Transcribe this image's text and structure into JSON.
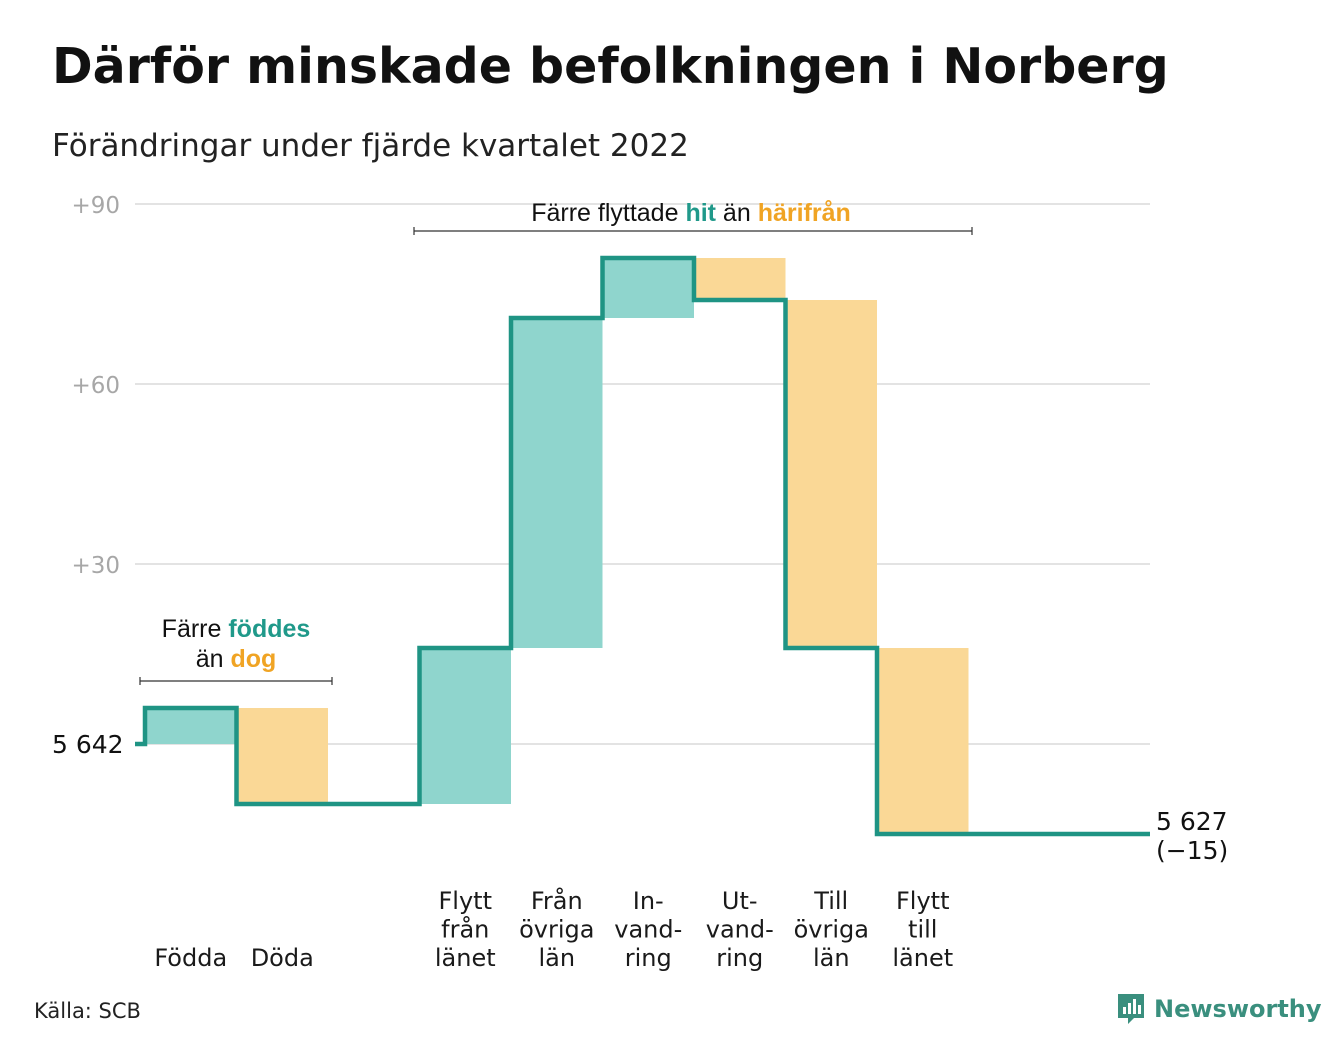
{
  "title": "Därför minskade befolkningen i Norberg",
  "subtitle": "Förändringar under fjärde kvartalet 2022",
  "source": "Källa: SCB",
  "brand": {
    "name": "Newsworthy",
    "icon": "newsworthy-logo-icon"
  },
  "colors": {
    "increase_fill": "#8fd5cd",
    "decrease_fill": "#fad896",
    "step_line": "#1f9484",
    "grid": "#e3e3e3",
    "tick_text": "#a7a7a7",
    "accent_teal": "#20998a",
    "accent_orange": "#f0a424"
  },
  "chart_data": {
    "type": "waterfall",
    "start": {
      "label": "5 642",
      "value": 5642
    },
    "end": {
      "label": "5 627",
      "change_label": "(−15)",
      "value": 5627
    },
    "y_ticks": [
      {
        "label": "+30",
        "value": 30
      },
      {
        "label": "+60",
        "value": 60
      },
      {
        "label": "+90",
        "value": 90
      }
    ],
    "ylim": [
      -20,
      90
    ],
    "grid": true,
    "steps": [
      {
        "label": [
          "Födda"
        ],
        "type": "increase",
        "value": 6
      },
      {
        "label": [
          "Döda"
        ],
        "type": "decrease",
        "value": -16
      },
      {
        "label": [],
        "type": "gap",
        "value": 0
      },
      {
        "label": [
          "Flytt",
          "från",
          "länet"
        ],
        "type": "increase",
        "value": 26
      },
      {
        "label": [
          "Från",
          "övriga",
          "län"
        ],
        "type": "increase",
        "value": 55
      },
      {
        "label": [
          "In-",
          "vand-",
          "ring"
        ],
        "type": "increase",
        "value": 10
      },
      {
        "label": [
          "Ut-",
          "vand-",
          "ring"
        ],
        "type": "decrease",
        "value": -7
      },
      {
        "label": [
          "Till",
          "övriga",
          "län"
        ],
        "type": "decrease",
        "value": -58
      },
      {
        "label": [
          "Flytt",
          "till",
          "länet"
        ],
        "type": "decrease",
        "value": -31
      }
    ],
    "annotations": [
      {
        "lines": [
          [
            {
              "text": "Färre ",
              "style": "plain"
            },
            {
              "text": "föddes",
              "style": "teal"
            }
          ],
          [
            {
              "text": "än ",
              "style": "plain"
            },
            {
              "text": "dog",
              "style": "orange"
            }
          ]
        ]
      },
      {
        "lines": [
          [
            {
              "text": "Färre flyttade ",
              "style": "plain"
            },
            {
              "text": "hit",
              "style": "teal"
            },
            {
              "text": " än ",
              "style": "plain"
            },
            {
              "text": "härifrån",
              "style": "orange"
            }
          ]
        ]
      }
    ]
  }
}
